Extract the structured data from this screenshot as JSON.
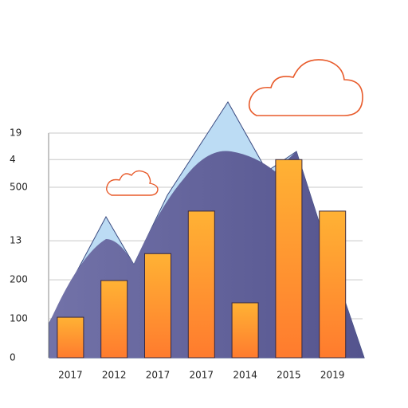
{
  "chart_data": {
    "type": "bar",
    "categories": [
      "2017",
      "2012",
      "2017",
      "2017",
      "2014",
      "2015",
      "2019"
    ],
    "values": [
      104,
      198,
      267,
      376,
      141,
      508,
      376
    ],
    "color": "#ff9a2e",
    "ylim": [
      0,
      580
    ],
    "yticks": [
      0,
      100,
      200,
      {
        "value": 300,
        "label": "13"
      },
      {
        "value": 437,
        "label": "500"
      },
      {
        "value": 508,
        "label": "4"
      },
      {
        "value": 576,
        "label": "19"
      }
    ],
    "grid": true
  }
}
